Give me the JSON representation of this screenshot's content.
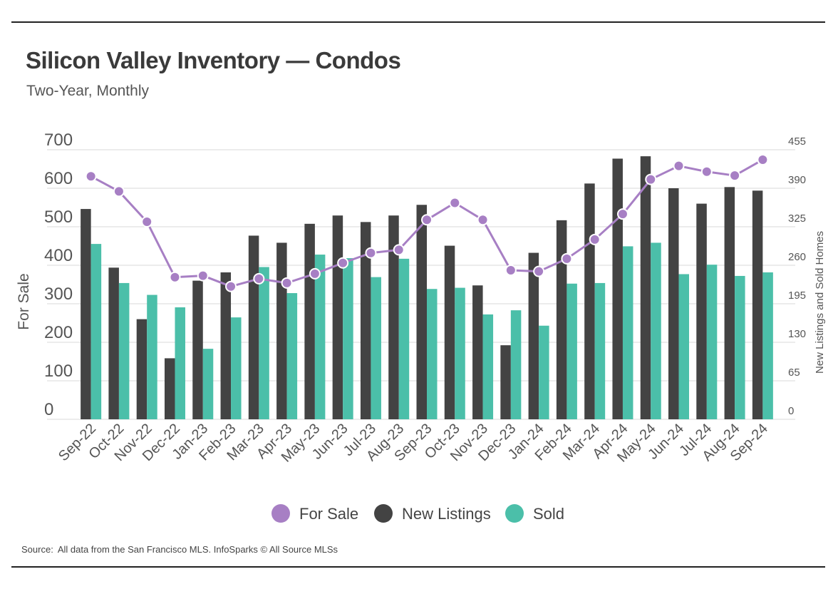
{
  "colors": {
    "for_sale": "#a77fc4",
    "new_listings": "#434343",
    "sold": "#4bbfa9",
    "gridline": "#d8d8d8",
    "axis_text": "#555555",
    "rule": "#222222"
  },
  "header": {
    "title": "Silicon Valley Inventory — Condos",
    "subtitle": "Two-Year, Monthly"
  },
  "footer": {
    "source_label": "Source:",
    "source_text": "All data from the San Francisco MLS. InfoSparks © All Source MLSs"
  },
  "chart_data": {
    "type": "bar",
    "title": "Silicon Valley Inventory — Condos",
    "subtitle": "Two-Year, Monthly",
    "categories": [
      "Sep-22",
      "Oct-22",
      "Nov-22",
      "Dec-22",
      "Jan-23",
      "Feb-23",
      "Mar-23",
      "Apr-23",
      "May-23",
      "Jun-23",
      "Jul-23",
      "Aug-23",
      "Sep-23",
      "Oct-23",
      "Nov-23",
      "Dec-23",
      "Jan-24",
      "Feb-24",
      "Mar-24",
      "Apr-24",
      "May-24",
      "Jun-24",
      "Jul-24",
      "Aug-24",
      "Sep-24"
    ],
    "y_left": {
      "label": "For Sale",
      "ylim": [
        0,
        700
      ],
      "ticks": [
        "0",
        "100",
        "200",
        "300",
        "400",
        "500",
        "600",
        "700"
      ]
    },
    "y_right": {
      "label": "New Listings and Sold Homes",
      "ylim": [
        0,
        455
      ],
      "ticks": [
        "0",
        "65",
        "130",
        "195",
        "260",
        "325",
        "390",
        "455"
      ]
    },
    "series": [
      {
        "name": "For Sale",
        "type": "line",
        "axis": "left",
        "values": [
          631,
          592,
          513,
          369,
          373,
          345,
          365,
          354,
          378,
          406,
          432,
          440,
          518,
          562,
          518,
          387,
          384,
          417,
          467,
          533,
          623,
          658,
          643,
          633,
          674
        ]
      },
      {
        "name": "New Listings",
        "type": "bar",
        "axis": "right",
        "values": [
          355,
          256,
          169,
          103,
          234,
          248,
          310,
          298,
          330,
          344,
          333,
          344,
          362,
          293,
          226,
          125,
          281,
          336,
          398,
          440,
          444,
          390,
          364,
          392,
          386
        ]
      },
      {
        "name": "Sold",
        "type": "bar",
        "axis": "right",
        "values": [
          296,
          230,
          210,
          189,
          119,
          172,
          257,
          213,
          278,
          272,
          240,
          271,
          220,
          222,
          177,
          184,
          158,
          229,
          230,
          292,
          298,
          245,
          261,
          242,
          248
        ]
      }
    ],
    "legend": [
      "For Sale",
      "New Listings",
      "Sold"
    ],
    "legend_position": "bottom-center",
    "grid": true
  }
}
